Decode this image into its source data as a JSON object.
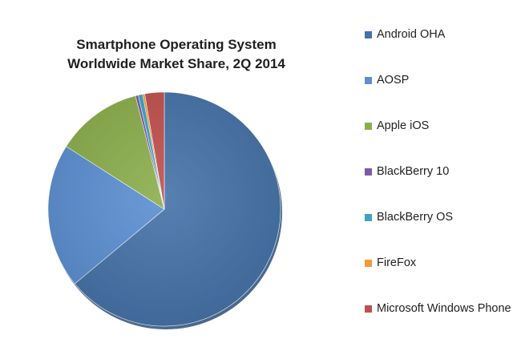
{
  "chart_data": {
    "type": "pie",
    "title": "Smartphone Operating System Worldwide Market Share, 2Q 2014",
    "title_lines": [
      "Smartphone Operating System",
      "Worldwide Market Share, 2Q 2014"
    ],
    "legend_position": "right",
    "start_angle_deg": 0,
    "categories": [
      "Android OHA",
      "AOSP",
      "Apple iOS",
      "BlackBerry 10",
      "BlackBerry OS",
      "FireFox",
      "Microsoft Windows Phone"
    ],
    "values": [
      64.0,
      20.0,
      12.0,
      0.4,
      0.6,
      0.3,
      2.7
    ],
    "colors": [
      "#4572A7",
      "#5B8FD1",
      "#8BAE4B",
      "#7B5BA6",
      "#3FA3BE",
      "#F39A3C",
      "#C0504D"
    ]
  }
}
